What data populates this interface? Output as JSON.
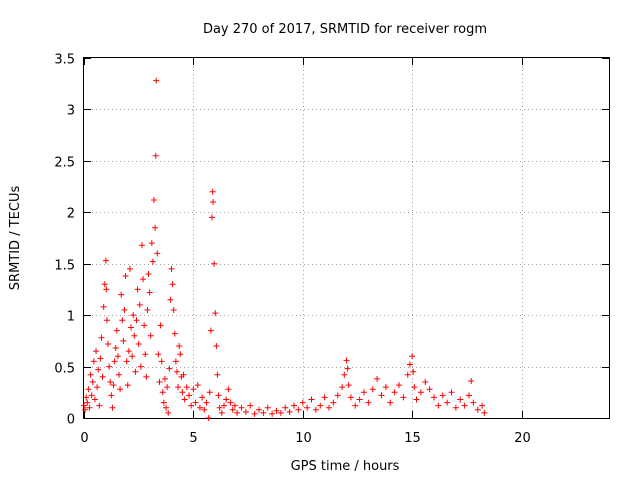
{
  "chart_data": {
    "type": "scatter",
    "title": "Day 270 of 2017, SRMTID for receiver rogm",
    "xlabel": "GPS time / hours",
    "ylabel": "SRMTID / TECUs",
    "xlim": [
      0,
      24
    ],
    "ylim": [
      0,
      3.5
    ],
    "xticks": [
      0,
      5,
      10,
      15,
      20
    ],
    "yticks": [
      0,
      0.5,
      1,
      1.5,
      2,
      2.5,
      3,
      3.5
    ],
    "xtick_labels": [
      "0",
      "5",
      "10",
      "15",
      "20"
    ],
    "ytick_labels": [
      "0",
      "0.5",
      "1",
      "1.5",
      "2",
      "2.5",
      "3",
      "3.5"
    ],
    "grid": true,
    "marker": "+",
    "color": "#ff0000",
    "series": [
      {
        "name": "SRMTID",
        "points": [
          [
            0.0,
            0.12
          ],
          [
            0.05,
            0.08
          ],
          [
            0.1,
            0.2
          ],
          [
            0.15,
            0.15
          ],
          [
            0.2,
            0.28
          ],
          [
            0.25,
            0.1
          ],
          [
            0.3,
            0.42
          ],
          [
            0.35,
            0.22
          ],
          [
            0.4,
            0.35
          ],
          [
            0.45,
            0.55
          ],
          [
            0.5,
            0.18
          ],
          [
            0.55,
            0.65
          ],
          [
            0.6,
            0.3
          ],
          [
            0.65,
            0.47
          ],
          [
            0.7,
            0.12
          ],
          [
            0.75,
            0.58
          ],
          [
            0.8,
            0.78
          ],
          [
            0.85,
            0.4
          ],
          [
            0.9,
            1.08
          ],
          [
            0.95,
            1.3
          ],
          [
            1.0,
            1.53
          ],
          [
            1.02,
            1.25
          ],
          [
            1.05,
            0.95
          ],
          [
            1.1,
            0.72
          ],
          [
            1.15,
            0.5
          ],
          [
            1.2,
            0.35
          ],
          [
            1.25,
            0.22
          ],
          [
            1.3,
            0.1
          ],
          [
            1.35,
            0.32
          ],
          [
            1.4,
            0.55
          ],
          [
            1.45,
            0.68
          ],
          [
            1.5,
            0.85
          ],
          [
            1.55,
            0.6
          ],
          [
            1.6,
            0.42
          ],
          [
            1.65,
            0.28
          ],
          [
            1.7,
            1.2
          ],
          [
            1.75,
            0.95
          ],
          [
            1.8,
            0.75
          ],
          [
            1.85,
            1.05
          ],
          [
            1.9,
            1.38
          ],
          [
            1.95,
            0.55
          ],
          [
            2.0,
            0.32
          ],
          [
            2.05,
            0.65
          ],
          [
            2.1,
            1.45
          ],
          [
            2.15,
            0.88
          ],
          [
            2.2,
            0.6
          ],
          [
            2.25,
            1.0
          ],
          [
            2.3,
            0.8
          ],
          [
            2.35,
            0.45
          ],
          [
            2.4,
            0.95
          ],
          [
            2.45,
            1.25
          ],
          [
            2.5,
            0.72
          ],
          [
            2.55,
            1.1
          ],
          [
            2.6,
            0.5
          ],
          [
            2.65,
            1.68
          ],
          [
            2.7,
            1.35
          ],
          [
            2.75,
            0.9
          ],
          [
            2.8,
            0.62
          ],
          [
            2.85,
            0.4
          ],
          [
            2.9,
            1.05
          ],
          [
            2.95,
            1.4
          ],
          [
            3.0,
            1.22
          ],
          [
            3.05,
            0.8
          ],
          [
            3.1,
            1.7
          ],
          [
            3.15,
            1.52
          ],
          [
            3.2,
            2.12
          ],
          [
            3.25,
            1.85
          ],
          [
            3.28,
            2.55
          ],
          [
            3.3,
            3.28
          ],
          [
            3.35,
            1.6
          ],
          [
            3.4,
            0.62
          ],
          [
            3.45,
            0.35
          ],
          [
            3.5,
            0.9
          ],
          [
            3.55,
            0.55
          ],
          [
            3.6,
            0.25
          ],
          [
            3.65,
            0.15
          ],
          [
            3.7,
            0.38
          ],
          [
            3.75,
            0.1
          ],
          [
            3.8,
            0.3
          ],
          [
            3.85,
            0.05
          ],
          [
            3.9,
            0.48
          ],
          [
            3.95,
            1.15
          ],
          [
            4.0,
            1.45
          ],
          [
            4.05,
            1.3
          ],
          [
            4.1,
            1.05
          ],
          [
            4.15,
            0.82
          ],
          [
            4.2,
            0.55
          ],
          [
            4.25,
            0.45
          ],
          [
            4.3,
            0.3
          ],
          [
            4.35,
            0.7
          ],
          [
            4.4,
            0.62
          ],
          [
            4.45,
            0.4
          ],
          [
            4.5,
            0.25
          ],
          [
            4.55,
            0.42
          ],
          [
            4.6,
            0.18
          ],
          [
            4.7,
            0.3
          ],
          [
            4.8,
            0.22
          ],
          [
            4.9,
            0.12
          ],
          [
            5.0,
            0.28
          ],
          [
            5.1,
            0.15
          ],
          [
            5.2,
            0.32
          ],
          [
            5.3,
            0.1
          ],
          [
            5.4,
            0.2
          ],
          [
            5.5,
            0.08
          ],
          [
            5.6,
            0.15
          ],
          [
            5.7,
            0.0
          ],
          [
            5.75,
            0.25
          ],
          [
            5.8,
            0.85
          ],
          [
            5.85,
            1.95
          ],
          [
            5.88,
            2.2
          ],
          [
            5.9,
            2.1
          ],
          [
            5.95,
            1.5
          ],
          [
            6.0,
            1.02
          ],
          [
            6.05,
            0.7
          ],
          [
            6.1,
            0.42
          ],
          [
            6.15,
            0.22
          ],
          [
            6.2,
            0.1
          ],
          [
            6.3,
            0.05
          ],
          [
            6.4,
            0.12
          ],
          [
            6.5,
            0.18
          ],
          [
            6.6,
            0.28
          ],
          [
            6.7,
            0.15
          ],
          [
            6.8,
            0.08
          ],
          [
            6.9,
            0.12
          ],
          [
            7.0,
            0.05
          ],
          [
            7.2,
            0.1
          ],
          [
            7.4,
            0.06
          ],
          [
            7.6,
            0.12
          ],
          [
            7.8,
            0.04
          ],
          [
            8.0,
            0.08
          ],
          [
            8.2,
            0.05
          ],
          [
            8.4,
            0.1
          ],
          [
            8.6,
            0.04
          ],
          [
            8.8,
            0.07
          ],
          [
            9.0,
            0.05
          ],
          [
            9.2,
            0.1
          ],
          [
            9.4,
            0.06
          ],
          [
            9.6,
            0.12
          ],
          [
            9.8,
            0.08
          ],
          [
            10.0,
            0.15
          ],
          [
            10.2,
            0.1
          ],
          [
            10.4,
            0.18
          ],
          [
            10.6,
            0.08
          ],
          [
            10.8,
            0.12
          ],
          [
            11.0,
            0.2
          ],
          [
            11.2,
            0.1
          ],
          [
            11.4,
            0.15
          ],
          [
            11.6,
            0.22
          ],
          [
            11.8,
            0.3
          ],
          [
            11.9,
            0.42
          ],
          [
            12.0,
            0.56
          ],
          [
            12.05,
            0.48
          ],
          [
            12.1,
            0.32
          ],
          [
            12.2,
            0.2
          ],
          [
            12.4,
            0.12
          ],
          [
            12.6,
            0.18
          ],
          [
            12.8,
            0.25
          ],
          [
            13.0,
            0.15
          ],
          [
            13.2,
            0.28
          ],
          [
            13.4,
            0.38
          ],
          [
            13.6,
            0.22
          ],
          [
            13.8,
            0.3
          ],
          [
            14.0,
            0.15
          ],
          [
            14.2,
            0.25
          ],
          [
            14.4,
            0.32
          ],
          [
            14.6,
            0.2
          ],
          [
            14.8,
            0.42
          ],
          [
            14.9,
            0.52
          ],
          [
            15.0,
            0.6
          ],
          [
            15.05,
            0.45
          ],
          [
            15.1,
            0.3
          ],
          [
            15.2,
            0.18
          ],
          [
            15.4,
            0.25
          ],
          [
            15.6,
            0.35
          ],
          [
            15.8,
            0.28
          ],
          [
            16.0,
            0.2
          ],
          [
            16.2,
            0.12
          ],
          [
            16.4,
            0.22
          ],
          [
            16.6,
            0.15
          ],
          [
            16.8,
            0.25
          ],
          [
            17.0,
            0.1
          ],
          [
            17.2,
            0.18
          ],
          [
            17.4,
            0.12
          ],
          [
            17.6,
            0.22
          ],
          [
            17.7,
            0.36
          ],
          [
            17.8,
            0.15
          ],
          [
            18.0,
            0.08
          ],
          [
            18.2,
            0.12
          ],
          [
            18.3,
            0.05
          ]
        ]
      }
    ]
  }
}
